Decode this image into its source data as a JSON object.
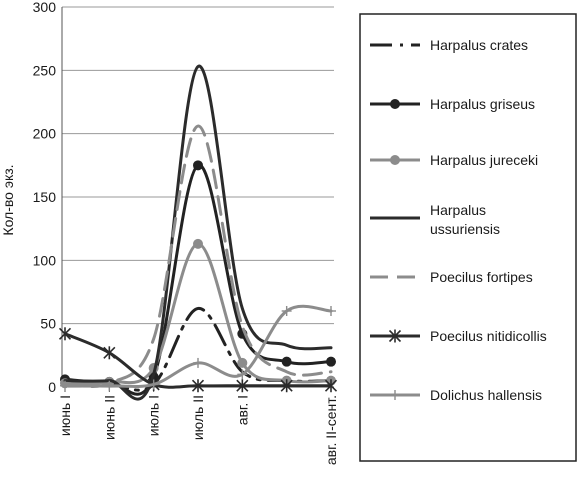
{
  "chart_data": {
    "type": "line",
    "title": "",
    "xlabel": "",
    "ylabel": "Кол-во экз.",
    "ylim": [
      0,
      300
    ],
    "yticks": [
      0,
      50,
      100,
      150,
      200,
      250,
      300
    ],
    "grid": "horizontal",
    "legend": "right",
    "categories": [
      "июнь I",
      "июнь II",
      "июль I",
      "июль II",
      "авг. I",
      "",
      "авг. II-сент."
    ],
    "series": [
      {
        "name": "Harpalus crates",
        "values": [
          3,
          2,
          2,
          62,
          12,
          5,
          5
        ],
        "color": "#222222",
        "dash": "22,8,3,8",
        "marker": "none"
      },
      {
        "name": "Harpalus griseus",
        "values": [
          6,
          4,
          8,
          175,
          42,
          20,
          20
        ],
        "color": "#222222",
        "dash": "",
        "marker": "dot"
      },
      {
        "name": "Harpalus jureceki",
        "values": [
          3,
          4,
          15,
          113,
          19,
          5,
          5
        ],
        "color": "#8c8c8c",
        "dash": "",
        "marker": "dot"
      },
      {
        "name": "Harpalus ussuriensis",
        "values": [
          5,
          5,
          10,
          253,
          62,
          33,
          31
        ],
        "color": "#2b2b2b",
        "dash": "",
        "marker": "none"
      },
      {
        "name": "Poecilus fortipes",
        "values": [
          3,
          3,
          38,
          206,
          48,
          12,
          12
        ],
        "color": "#8c8c8c",
        "dash": "18,9",
        "marker": "none"
      },
      {
        "name": "Poecilus nitidicollis",
        "values": [
          42,
          27,
          2,
          1,
          1,
          1,
          1
        ],
        "color": "#2b2b2b",
        "dash": "",
        "marker": "star"
      },
      {
        "name": "Dolichus hallensis",
        "values": [
          1,
          1,
          2,
          19,
          10,
          60,
          60
        ],
        "color": "#8c8c8c",
        "dash": "",
        "marker": "plus"
      }
    ]
  }
}
